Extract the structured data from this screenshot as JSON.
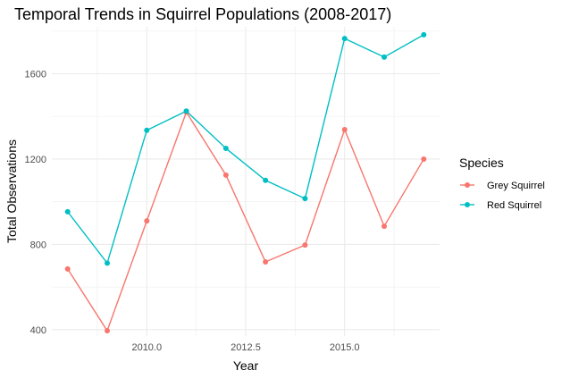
{
  "chart_data": {
    "type": "line",
    "title": "Temporal Trends in Squirrel Populations (2008-2017)",
    "xlabel": "Year",
    "ylabel": "Total Observations",
    "x": [
      2008,
      2009,
      2010,
      2011,
      2012,
      2013,
      2014,
      2015,
      2016,
      2017
    ],
    "xlim": [
      2007.6,
      2017.4
    ],
    "ylim": [
      370,
      1820
    ],
    "x_ticks": [
      "2010.0",
      "2012.5",
      "2015.0"
    ],
    "y_ticks": [
      "400",
      "800",
      "1200",
      "1600"
    ],
    "grid": true,
    "legend_title": "Species",
    "legend_position": "right",
    "series": [
      {
        "name": "Grey Squirrel",
        "color": "#F8766D",
        "values": [
          685,
          395,
          910,
          1420,
          1125,
          718,
          797,
          1338,
          885,
          1200
        ]
      },
      {
        "name": "Red Squirrel",
        "color": "#00BFC4",
        "values": [
          953,
          712,
          1335,
          1425,
          1250,
          1100,
          1015,
          1765,
          1678,
          1783
        ]
      }
    ]
  }
}
